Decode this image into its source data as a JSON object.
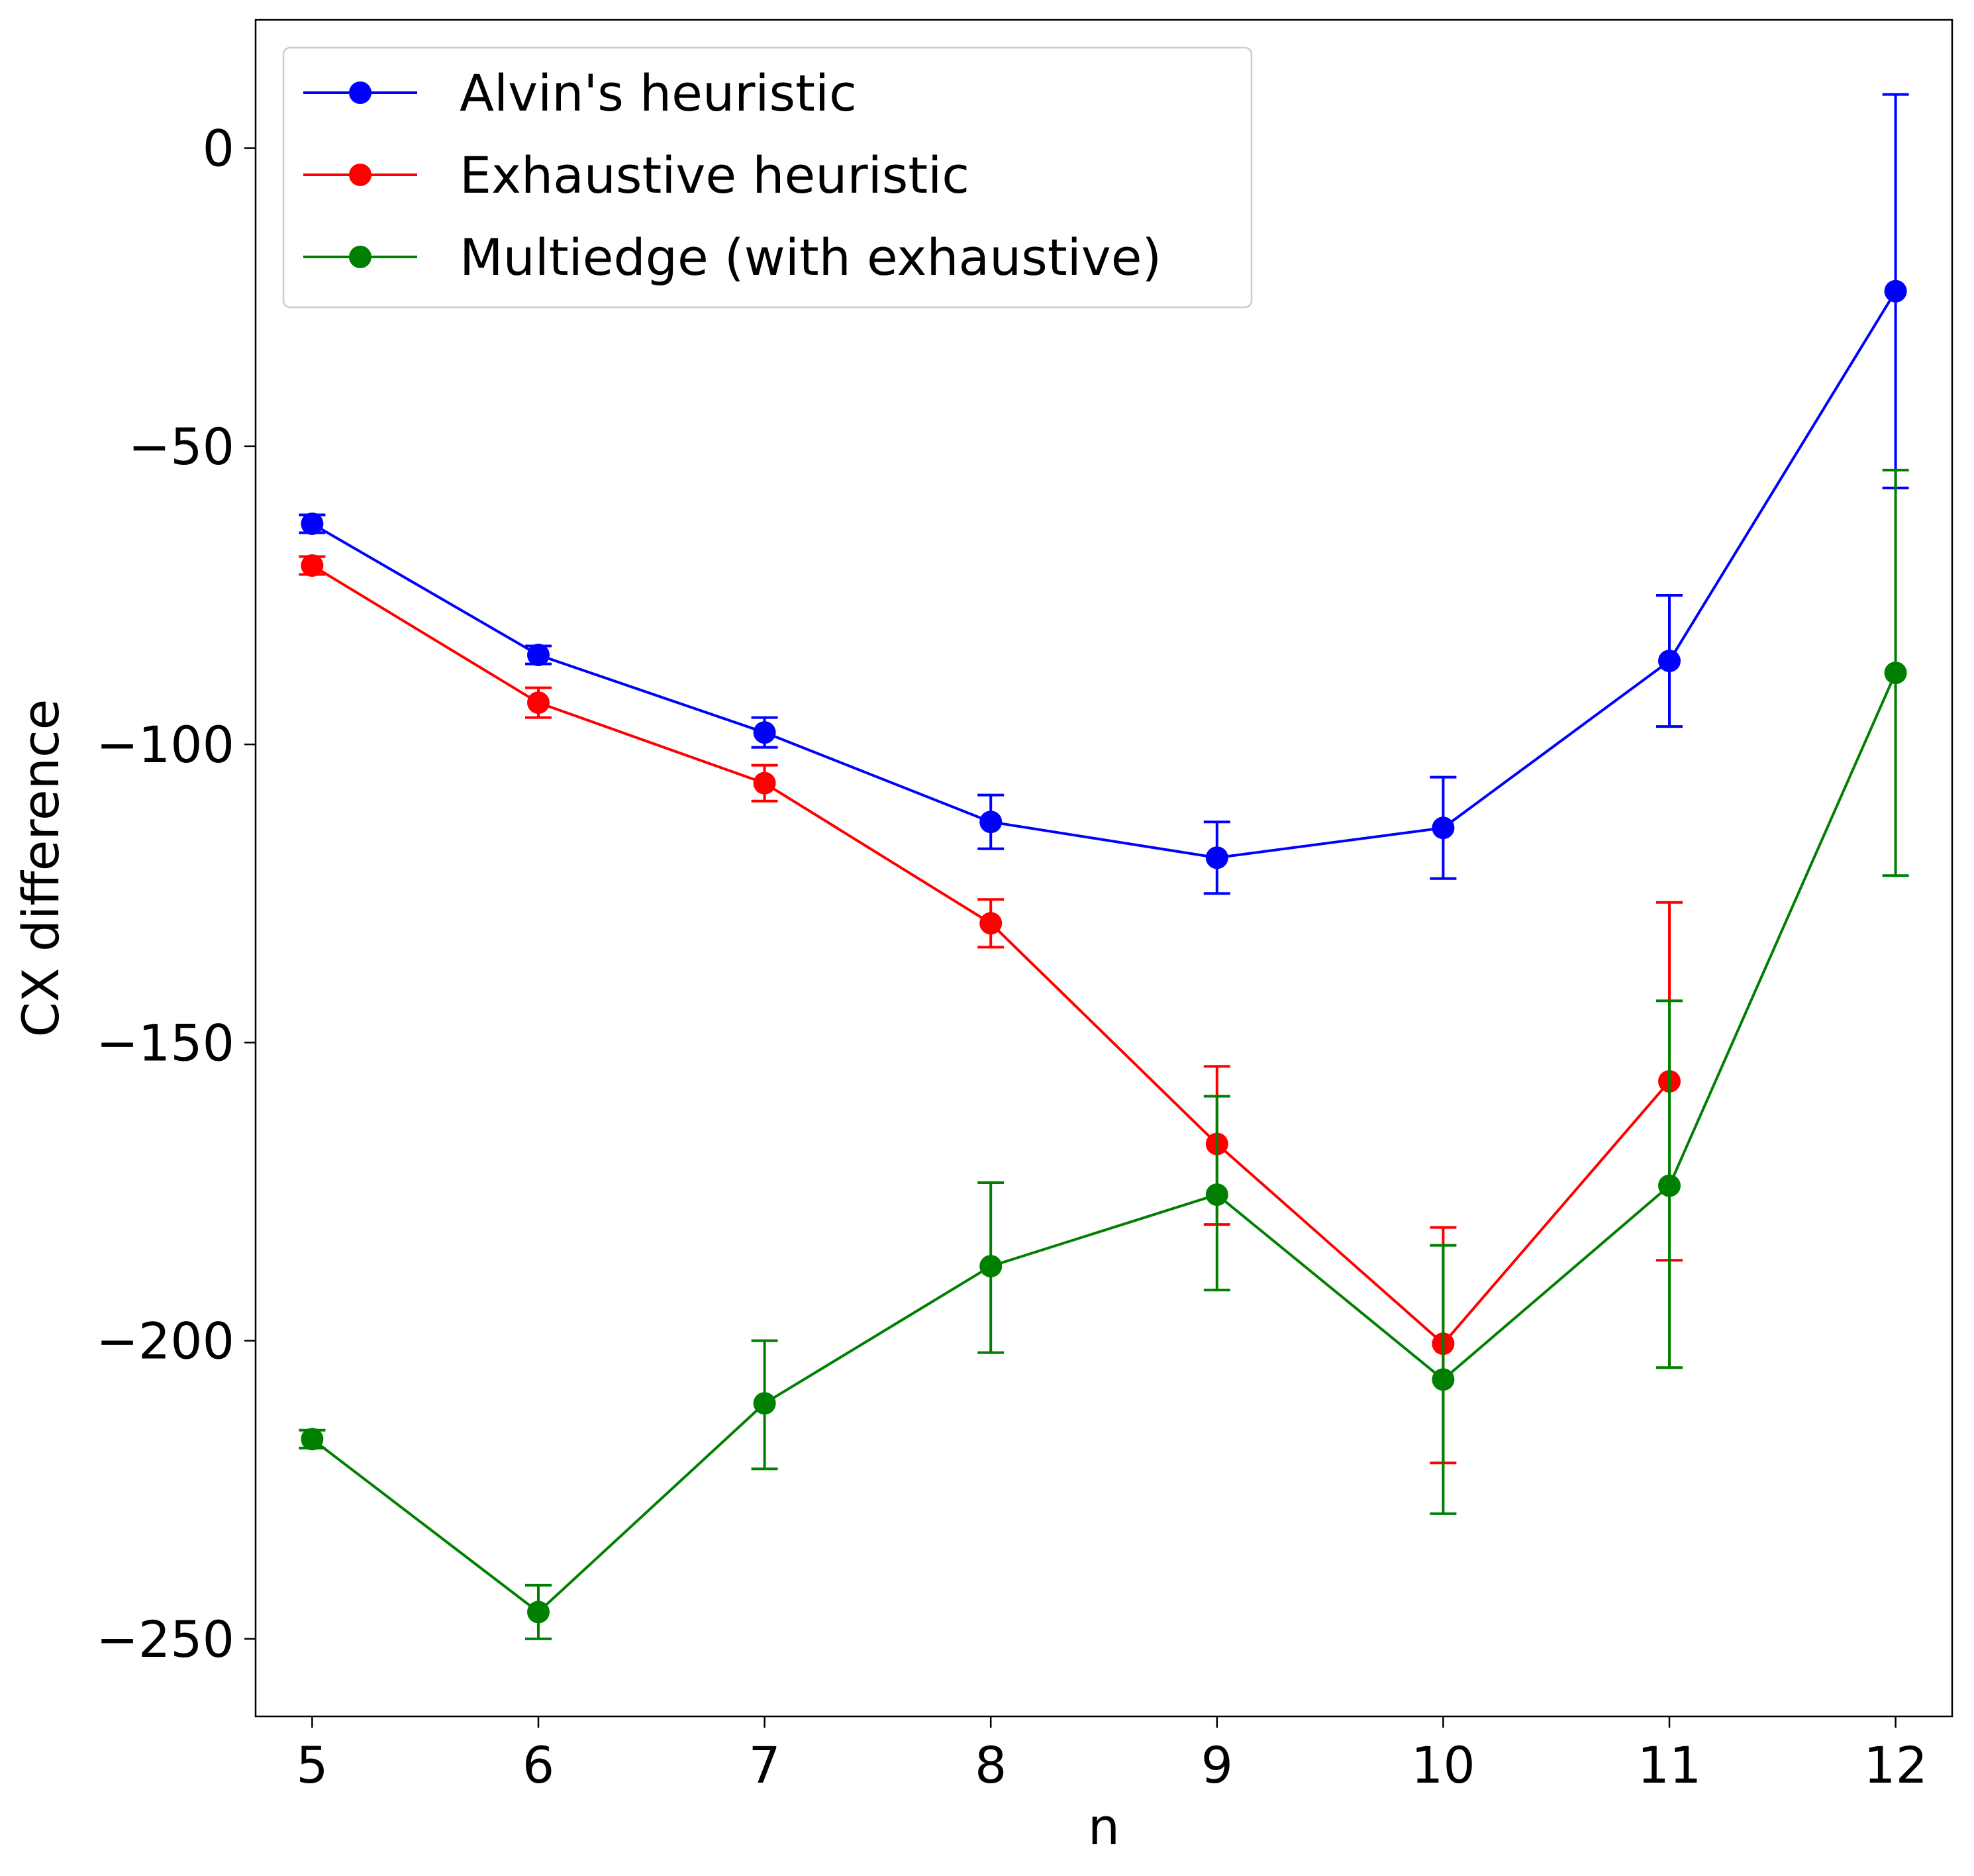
{
  "chart_data": {
    "type": "line",
    "title": "",
    "xlabel": "n",
    "ylabel": "CX difference",
    "x": [
      5,
      6,
      7,
      8,
      9,
      10,
      11,
      12
    ],
    "xticks": [
      "5",
      "6",
      "7",
      "8",
      "9",
      "10",
      "11",
      "12"
    ],
    "yticks": [
      0,
      -50,
      -100,
      -150,
      -200,
      -250
    ],
    "ytick_labels": [
      "0",
      "−50",
      "−100",
      "−150",
      "−200",
      "−250"
    ],
    "xlim": [
      4.75,
      12.25
    ],
    "ylim": [
      -263,
      21.5
    ],
    "grid": false,
    "legend_position": "top-left",
    "series": [
      {
        "name": "Alvin's heuristic",
        "color": "#0000ff",
        "values": [
          -63,
          -85,
          -98,
          -113,
          -119,
          -114,
          -86,
          -24
        ],
        "err_low": [
          -64.5,
          -86.5,
          -100.5,
          -117.5,
          -125,
          -122.5,
          -97,
          -57
        ],
        "err_high": [
          -61.5,
          -83.5,
          -95.5,
          -108.5,
          -113,
          -105.5,
          -75,
          9
        ]
      },
      {
        "name": "Exhaustive heuristic",
        "color": "#ff0000",
        "values": [
          -70,
          -93,
          -106.5,
          -130,
          -167,
          -200.5,
          -156.5,
          null
        ],
        "err_low": [
          -71.5,
          -95.5,
          -109.5,
          -134,
          -180.5,
          -220.5,
          -186.5,
          null
        ],
        "err_high": [
          -68.5,
          -90.5,
          -103.5,
          -126,
          -154,
          -181,
          -126.5,
          null
        ]
      },
      {
        "name": "Multiedge (with exhaustive)",
        "color": "#008000",
        "values": [
          -216.5,
          -245.5,
          -210.5,
          -187.5,
          -175.5,
          -206.5,
          -174,
          -88
        ],
        "err_low": [
          -218,
          -250,
          -221.5,
          -202,
          -191.5,
          -229,
          -204.5,
          -122
        ],
        "err_high": [
          -215,
          -241,
          -200,
          -173.5,
          -159,
          -184,
          -143,
          -54
        ]
      }
    ]
  }
}
